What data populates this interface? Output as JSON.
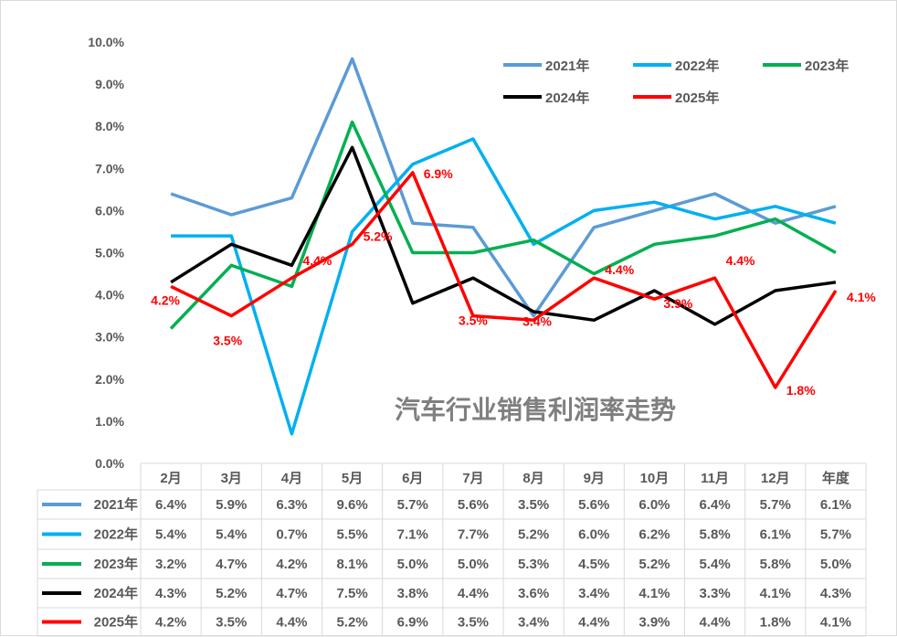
{
  "chart_data": {
    "type": "line",
    "title": "汽车行业销售利润率走势",
    "categories": [
      "2月",
      "3月",
      "4月",
      "5月",
      "6月",
      "7月",
      "8月",
      "9月",
      "10月",
      "11月",
      "12月",
      "年度"
    ],
    "ylim": [
      0,
      10
    ],
    "yticks": [
      "0.0%",
      "1.0%",
      "2.0%",
      "3.0%",
      "4.0%",
      "5.0%",
      "6.0%",
      "7.0%",
      "8.0%",
      "9.0%",
      "10.0%"
    ],
    "grid": false,
    "legend_placement": "top-right",
    "data_table": true,
    "series": [
      {
        "name": "2021年",
        "color": "#5b9bd5",
        "values": [
          6.4,
          5.9,
          6.3,
          9.6,
          5.7,
          5.6,
          3.5,
          5.6,
          6.0,
          6.4,
          5.7,
          6.1
        ]
      },
      {
        "name": "2022年",
        "color": "#00b0f0",
        "values": [
          5.4,
          5.4,
          0.7,
          5.5,
          7.1,
          7.7,
          5.2,
          6.0,
          6.2,
          5.8,
          6.1,
          5.7
        ]
      },
      {
        "name": "2023年",
        "color": "#00b050",
        "values": [
          3.2,
          4.7,
          4.2,
          8.1,
          5.0,
          5.0,
          5.3,
          4.5,
          5.2,
          5.4,
          5.8,
          5.0
        ]
      },
      {
        "name": "2024年",
        "color": "#000000",
        "values": [
          4.3,
          5.2,
          4.7,
          7.5,
          3.8,
          4.4,
          3.6,
          3.4,
          4.1,
          3.3,
          4.1,
          4.3
        ]
      },
      {
        "name": "2025年",
        "color": "#ff0000",
        "values": [
          4.2,
          3.5,
          4.4,
          5.2,
          6.9,
          3.5,
          3.4,
          4.4,
          3.9,
          4.4,
          1.8,
          4.1
        ],
        "data_labels": true
      }
    ]
  }
}
